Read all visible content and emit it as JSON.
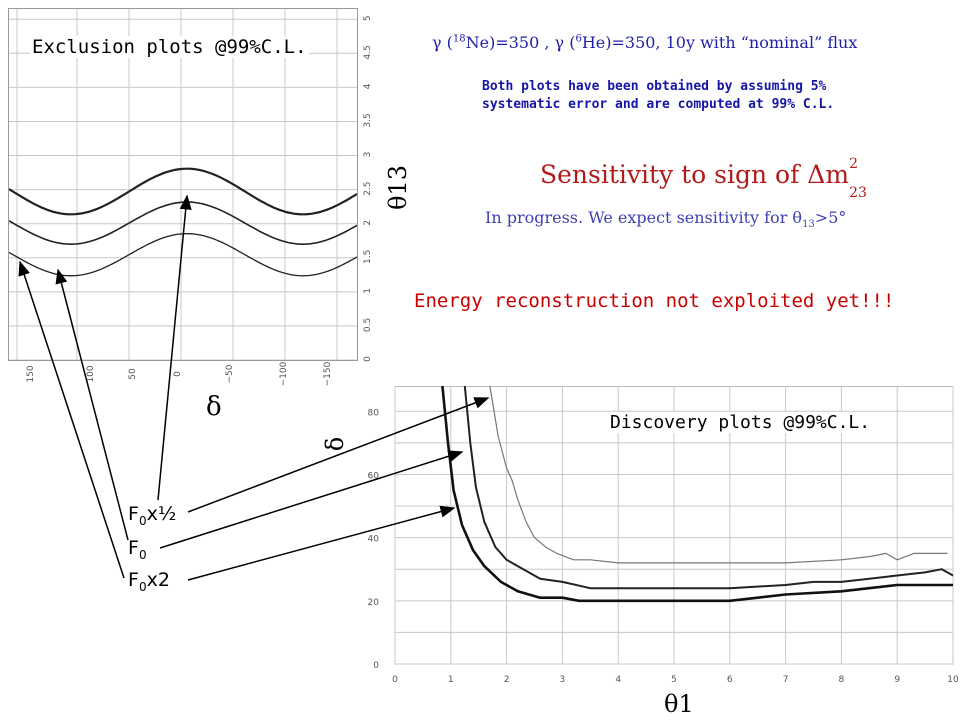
{
  "exclusion": {
    "title": "Exclusion plots @99%C.L.",
    "y_ticks": [
      "0",
      "0.5",
      "1",
      "1.5",
      "2",
      "2.5",
      "3",
      "3.5",
      "4",
      "4.5",
      "5"
    ],
    "x_ticks": [
      "150",
      "100",
      "50",
      "0",
      "−50",
      "−100",
      "−150"
    ],
    "y_axis_label": "θ13",
    "x_axis_label": "δ"
  },
  "discovery": {
    "title": "Discovery plots @99%C.L.",
    "y_ticks": [
      "0",
      "20",
      "40",
      "60",
      "80"
    ],
    "x_ticks": [
      "0",
      "1",
      "2",
      "3",
      "4",
      "5",
      "6",
      "7",
      "8",
      "9",
      "10"
    ],
    "y_axis_label": "δ",
    "x_axis_label": "θ1"
  },
  "flux_info": {
    "gamma1": "γ (",
    "ne_mass": "18",
    "ne": "Ne)=350 , ",
    "gamma2": "γ (",
    "he_mass": "6",
    "he": "He)=350, 10y with “nominal” flux"
  },
  "note": {
    "line1": "Both plots have been obtained by assuming 5%",
    "line2": "systematic error and are computed at 99% C.L."
  },
  "sensitivity": {
    "prefix": "Sensitivity to sign of Δm",
    "sup": "2",
    "sub": "23"
  },
  "progress": {
    "prefix": "In progress. We expect sensitivity for θ",
    "sub": "13",
    "suffix": ">5°"
  },
  "energy_note": "Energy reconstruction not exploited yet!!!",
  "flux_labels": {
    "half": {
      "base": "F",
      "sub": "0",
      "suffix": "x½"
    },
    "nominal": {
      "base": "F",
      "sub": "0",
      "suffix": ""
    },
    "double": {
      "base": "F",
      "sub": "0",
      "suffix": "x2"
    }
  },
  "colors": {
    "red": "#b21a1a",
    "blue": "#1e1ea8",
    "energy": "#c80000"
  }
}
